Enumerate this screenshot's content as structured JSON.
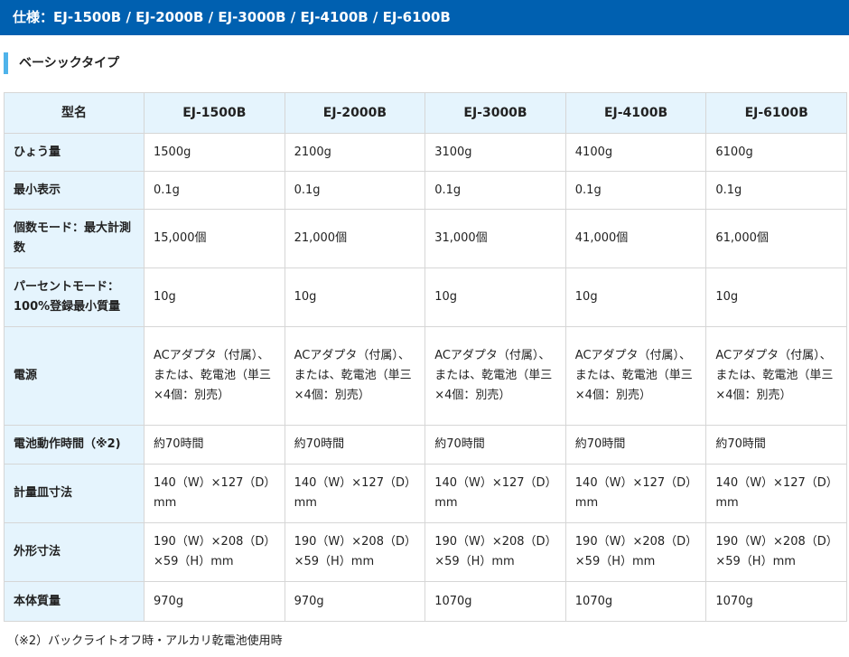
{
  "title": "仕様：EJ-1500B / EJ-2000B / EJ-3000B / EJ-4100B / EJ-6100B",
  "section": "ベーシックタイプ",
  "accent_color": "#0060b0",
  "table": {
    "header": [
      "型名",
      "EJ-1500B",
      "EJ-2000B",
      "EJ-3000B",
      "EJ-4100B",
      "EJ-6100B"
    ],
    "rows": [
      {
        "label": "ひょう量",
        "cells": [
          "1500g",
          "2100g",
          "3100g",
          "4100g",
          "6100g"
        ]
      },
      {
        "label": "最小表示",
        "cells": [
          "0.1g",
          "0.1g",
          "0.1g",
          "0.1g",
          "0.1g"
        ]
      },
      {
        "label": "個数モード：最大計測数",
        "cells": [
          "15,000個",
          "21,000個",
          "31,000個",
          "41,000個",
          "61,000個"
        ]
      },
      {
        "label": "パーセントモード：100%登録最小質量",
        "cells": [
          "10g",
          "10g",
          "10g",
          "10g",
          "10g"
        ]
      },
      {
        "label": "電源",
        "cells": [
          "ACアダプタ（付属）、または、乾電池（単三×4個：別売）",
          "ACアダプタ（付属）、または、乾電池（単三×4個：別売）",
          "ACアダプタ（付属）、または、乾電池（単三×4個：別売）",
          "ACアダプタ（付属）、または、乾電池（単三×4個：別売）",
          "ACアダプタ（付属）、または、乾電池（単三×4個：別売）"
        ]
      },
      {
        "label": "電池動作時間（※2)",
        "cells": [
          "約70時間",
          "約70時間",
          "約70時間",
          "約70時間",
          "約70時間"
        ]
      },
      {
        "label": "計量皿寸法",
        "cells": [
          "140（W）×127（D）mm",
          "140（W）×127（D）mm",
          "140（W）×127（D）mm",
          "140（W）×127（D）mm",
          "140（W）×127（D）mm"
        ]
      },
      {
        "label": "外形寸法",
        "cells": [
          "190（W）×208（D）×59（H）mm",
          "190（W）×208（D）×59（H）mm",
          "190（W）×208（D）×59（H）mm",
          "190（W）×208（D）×59（H）mm",
          "190（W）×208（D）×59（H）mm"
        ]
      },
      {
        "label": "本体質量",
        "cells": [
          "970g",
          "970g",
          "1070g",
          "1070g",
          "1070g"
        ]
      }
    ]
  },
  "footnote": "（※2）バックライトオフ時・アルカリ乾電池使用時"
}
